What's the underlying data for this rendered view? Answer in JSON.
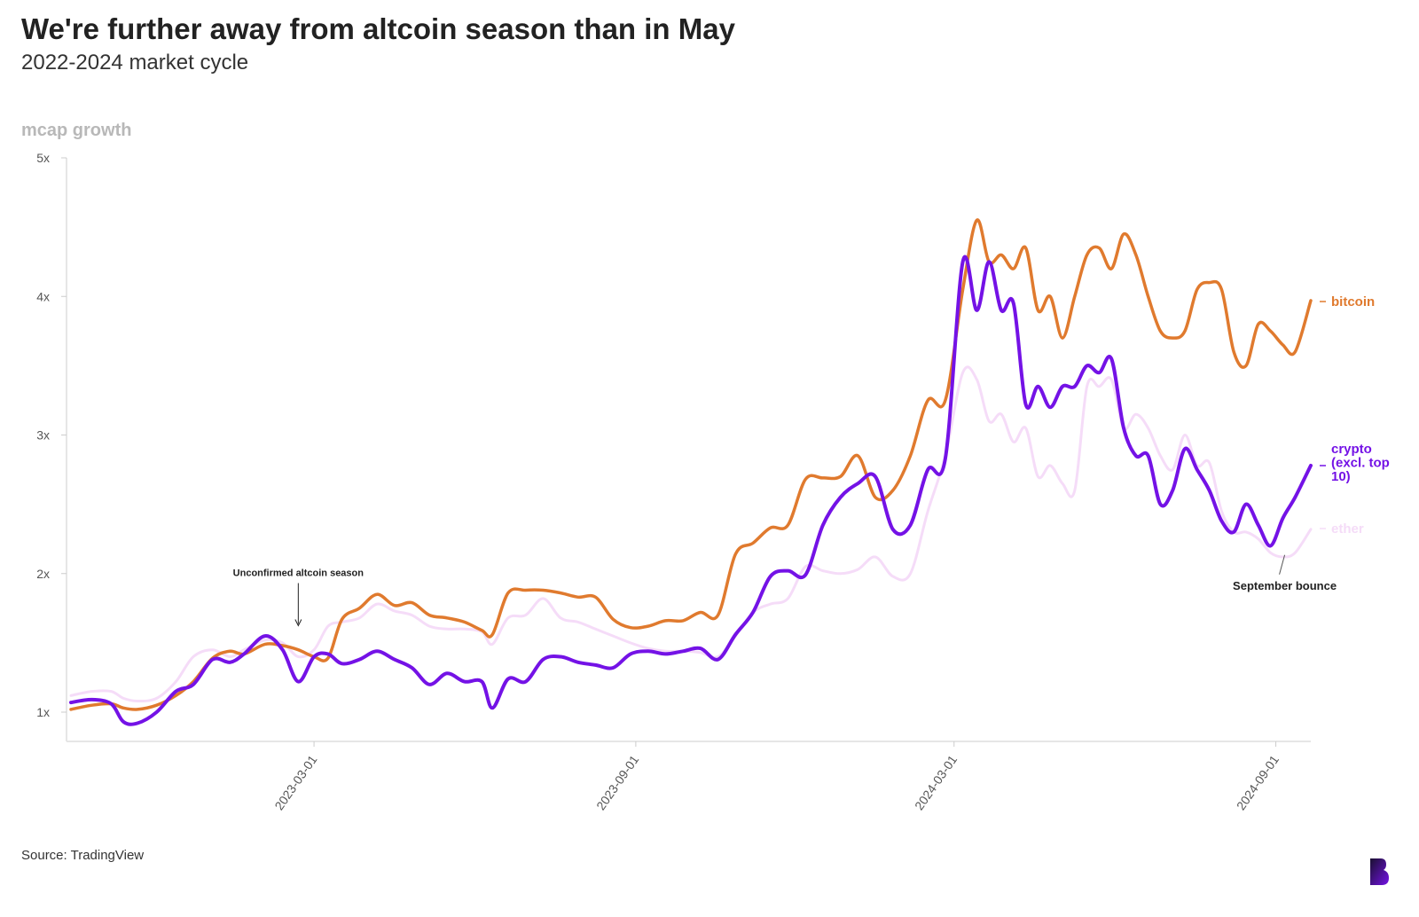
{
  "title": "We're further away from altcoin season than in May",
  "subtitle": "2022-2024 market cycle",
  "source": "Source: TradingView",
  "colors": {
    "bitcoin": "#e07a2e",
    "crypto": "#7412e6",
    "ether": "#f5dcf8",
    "axis": "#e6e6e6",
    "label_gray": "#b8b8b8"
  },
  "logo_icon": "blockworks-logo-icon",
  "chart_data": {
    "type": "line",
    "ylabel": "mcap growth",
    "ylim": [
      0.8,
      5
    ],
    "yticks": [
      1,
      2,
      3,
      4,
      5
    ],
    "ytick_labels": [
      "1x",
      "2x",
      "3x",
      "4x",
      "5x"
    ],
    "xlim": [
      "2022-10-13",
      "2024-09-21"
    ],
    "xticks": [
      "2023-03-01",
      "2023-09-01",
      "2024-03-01",
      "2024-09-01"
    ],
    "grid": false,
    "x": [
      "2022-10-13",
      "2022-10-25",
      "2022-11-05",
      "2022-11-12",
      "2022-11-20",
      "2022-12-01",
      "2022-12-12",
      "2022-12-22",
      "2023-01-02",
      "2023-01-12",
      "2023-01-20",
      "2023-02-01",
      "2023-02-11",
      "2023-02-20",
      "2023-03-01",
      "2023-03-09",
      "2023-03-17",
      "2023-03-27",
      "2023-04-06",
      "2023-04-16",
      "2023-04-26",
      "2023-05-06",
      "2023-05-16",
      "2023-05-26",
      "2023-06-05",
      "2023-06-11",
      "2023-06-20",
      "2023-06-30",
      "2023-07-10",
      "2023-07-20",
      "2023-07-30",
      "2023-08-09",
      "2023-08-19",
      "2023-08-29",
      "2023-09-08",
      "2023-09-18",
      "2023-09-28",
      "2023-10-08",
      "2023-10-18",
      "2023-10-28",
      "2023-11-07",
      "2023-11-17",
      "2023-11-27",
      "2023-12-07",
      "2023-12-17",
      "2023-12-27",
      "2024-01-06",
      "2024-01-16",
      "2024-01-26",
      "2024-02-05",
      "2024-02-15",
      "2024-02-25",
      "2024-03-06",
      "2024-03-14",
      "2024-03-21",
      "2024-03-28",
      "2024-04-04",
      "2024-04-11",
      "2024-04-18",
      "2024-04-25",
      "2024-05-02",
      "2024-05-09",
      "2024-05-16",
      "2024-05-23",
      "2024-05-30",
      "2024-06-06",
      "2024-06-13",
      "2024-06-20",
      "2024-06-27",
      "2024-07-04",
      "2024-07-11",
      "2024-07-18",
      "2024-07-25",
      "2024-08-01",
      "2024-08-08",
      "2024-08-15",
      "2024-08-22",
      "2024-08-29",
      "2024-09-05",
      "2024-09-12",
      "2024-09-21"
    ],
    "series": [
      {
        "name": "bitcoin",
        "values": [
          1.02,
          1.05,
          1.06,
          1.03,
          1.02,
          1.05,
          1.12,
          1.22,
          1.39,
          1.44,
          1.42,
          1.49,
          1.48,
          1.45,
          1.4,
          1.39,
          1.67,
          1.75,
          1.85,
          1.77,
          1.79,
          1.7,
          1.68,
          1.65,
          1.59,
          1.56,
          1.86,
          1.88,
          1.88,
          1.86,
          1.83,
          1.83,
          1.67,
          1.61,
          1.62,
          1.66,
          1.66,
          1.72,
          1.7,
          2.14,
          2.22,
          2.33,
          2.35,
          2.68,
          2.69,
          2.7,
          2.85,
          2.55,
          2.6,
          2.85,
          3.25,
          3.25,
          4.05,
          4.55,
          4.25,
          4.3,
          4.2,
          4.35,
          3.9,
          4.0,
          3.7,
          4.0,
          4.3,
          4.35,
          4.2,
          4.45,
          4.3,
          4.0,
          3.75,
          3.7,
          3.75,
          4.05,
          4.1,
          4.05,
          3.6,
          3.5,
          3.8,
          3.75,
          3.65,
          3.6,
          3.97
        ]
      },
      {
        "name": "crypto (excl. top 10)",
        "values": [
          1.07,
          1.09,
          1.06,
          0.93,
          0.92,
          1.0,
          1.15,
          1.2,
          1.38,
          1.36,
          1.42,
          1.55,
          1.45,
          1.22,
          1.4,
          1.42,
          1.35,
          1.38,
          1.44,
          1.38,
          1.32,
          1.2,
          1.28,
          1.22,
          1.22,
          1.03,
          1.24,
          1.22,
          1.38,
          1.4,
          1.36,
          1.34,
          1.32,
          1.42,
          1.44,
          1.42,
          1.44,
          1.46,
          1.38,
          1.56,
          1.72,
          1.98,
          2.02,
          1.99,
          2.35,
          2.55,
          2.65,
          2.7,
          2.32,
          2.35,
          2.75,
          2.83,
          4.25,
          3.9,
          4.25,
          3.9,
          3.95,
          3.22,
          3.35,
          3.2,
          3.35,
          3.35,
          3.5,
          3.45,
          3.55,
          3.05,
          2.85,
          2.85,
          2.5,
          2.6,
          2.9,
          2.75,
          2.6,
          2.38,
          2.3,
          2.5,
          2.35,
          2.2,
          2.4,
          2.55,
          2.78
        ]
      },
      {
        "name": "ether",
        "values": [
          1.12,
          1.15,
          1.15,
          1.1,
          1.08,
          1.1,
          1.22,
          1.4,
          1.45,
          1.4,
          1.45,
          1.52,
          1.5,
          1.4,
          1.45,
          1.62,
          1.65,
          1.68,
          1.78,
          1.73,
          1.7,
          1.62,
          1.6,
          1.6,
          1.58,
          1.49,
          1.68,
          1.7,
          1.82,
          1.68,
          1.65,
          1.6,
          1.55,
          1.5,
          1.46,
          1.44,
          1.44,
          1.43,
          1.4,
          1.55,
          1.72,
          1.78,
          1.82,
          2.05,
          2.02,
          2.0,
          2.03,
          2.12,
          1.98,
          2.0,
          2.45,
          2.85,
          3.45,
          3.4,
          3.1,
          3.15,
          2.95,
          3.05,
          2.7,
          2.78,
          2.65,
          2.6,
          3.35,
          3.35,
          3.4,
          3.05,
          3.15,
          3.05,
          2.85,
          2.75,
          3.0,
          2.78,
          2.8,
          2.45,
          2.3,
          2.3,
          2.25,
          2.15,
          2.12,
          2.15,
          2.32
        ]
      }
    ],
    "annotations": [
      {
        "text": "Unconfirmed altcoin season",
        "x": "2023-02-20",
        "y": 1.56
      },
      {
        "text": "September bounce",
        "x": "2024-09-01",
        "y": 2.16
      }
    ],
    "end_labels": [
      {
        "series": "bitcoin",
        "lines": [
          "bitcoin"
        ]
      },
      {
        "series": "crypto (excl. top 10)",
        "lines": [
          "crypto",
          "(excl. top",
          "10)"
        ]
      },
      {
        "series": "ether",
        "lines": [
          "ether"
        ]
      }
    ]
  }
}
